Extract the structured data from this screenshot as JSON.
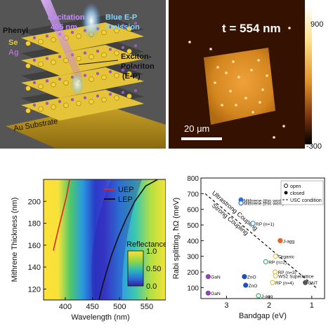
{
  "panel_a": {
    "labels": {
      "excitation": "Excitation",
      "wavelength": "405 nm",
      "phenyl": "Phenyl",
      "se": "Se",
      "ag": "Ag",
      "emission_line1": "Blue E-P",
      "emission_line2": "Emission",
      "ep_line1": "Exciton-",
      "ep_line2": "Polariton",
      "ep_line3": "(E-P)",
      "substrate": "Au Substrate"
    }
  },
  "panel_b": {
    "thickness_label": "t = 554 nm",
    "scalebar_label": "20 μm",
    "colorbar_max": "900",
    "colorbar_min": "-300"
  },
  "chart_data": [
    {
      "type": "heatmap",
      "xlabel": "Wavelength (nm)",
      "ylabel": "Mithrene Thickness (nm)",
      "xlim": [
        360,
        585
      ],
      "ylim": [
        110,
        220
      ],
      "xticks": [
        400,
        450,
        500,
        550
      ],
      "yticks": [
        120,
        140,
        160,
        180,
        200
      ],
      "colorbar": {
        "title": "Reflectance",
        "ticks": [
          "1.0",
          "0.50",
          "0.0"
        ],
        "range": [
          0.0,
          1.0
        ]
      },
      "series": [
        {
          "name": "UEP",
          "color": "#e8231e",
          "points": [
            [
              378,
              155
            ],
            [
              386,
              172
            ],
            [
              394,
              188
            ],
            [
              402,
              204
            ],
            [
              408,
              220
            ]
          ]
        },
        {
          "name": "LEP",
          "color": "#111111",
          "points": [
            [
              462,
              110
            ],
            [
              468,
              122
            ],
            [
              476,
              136
            ],
            [
              486,
              152
            ],
            [
              498,
              168
            ],
            [
              512,
              184
            ],
            [
              528,
              200
            ],
            [
              548,
              214
            ],
            [
              570,
              220
            ]
          ]
        }
      ]
    },
    {
      "type": "scatter",
      "xlabel": "Bandgap (eV)",
      "ylabel": "Rabi splitting, ħΩ (meV)",
      "xlim": [
        3.6,
        0.7
      ],
      "ylim": [
        30,
        800
      ],
      "x_reversed": true,
      "xticks": [
        3,
        2,
        1
      ],
      "yticks": [
        100,
        200,
        300,
        400,
        500,
        600,
        700,
        800
      ],
      "legend": {
        "position": "top-right",
        "entries": [
          "open",
          "closed",
          "USC condition"
        ]
      },
      "annotations": {
        "usc_line": "Ultrastrong Coupling",
        "sc_line": "Strong Coupling"
      },
      "points": [
        {
          "label": "Mithrene (this work)",
          "x": 2.66,
          "y": 660,
          "color": "#2f6fd6",
          "filled": true
        },
        {
          "label": "Mithrene (this work)",
          "x": 2.66,
          "y": 640,
          "color": "#2f6fd6",
          "filled": false
        },
        {
          "label": "RP (n=1)",
          "x": 2.38,
          "y": 510,
          "color": "#4a9fd6",
          "filled": false
        },
        {
          "label": "J-agg",
          "x": 1.74,
          "y": 400,
          "color": "#e8641e",
          "filled": true
        },
        {
          "label": "Organic",
          "x": 1.85,
          "y": 300,
          "color": "#e0c050",
          "filled": false
        },
        {
          "label": "RP (n=2)",
          "x": 2.08,
          "y": 265,
          "color": "#3cb371",
          "filled": false
        },
        {
          "label": "RP (n=3)",
          "x": 1.86,
          "y": 200,
          "color": "#e0c050",
          "filled": false
        },
        {
          "label": "WS2 Superlattice",
          "x": 1.85,
          "y": 175,
          "color": "#e0c050",
          "filled": false
        },
        {
          "label": "RP (n=4)",
          "x": 1.92,
          "y": 132,
          "color": "#e0c050",
          "filled": false
        },
        {
          "label": "CNT",
          "x": 1.15,
          "y": 132,
          "color": "#555555",
          "filled": true
        },
        {
          "label": "GaN",
          "x": 3.43,
          "y": 170,
          "color": "#8e44ad",
          "filled": true
        },
        {
          "label": "GaN",
          "x": 3.43,
          "y": 65,
          "color": "#8e44ad",
          "filled": true
        },
        {
          "label": "ZnO",
          "x": 2.58,
          "y": 170,
          "color": "#1f4fbf",
          "filled": true
        },
        {
          "label": "ZnO",
          "x": 2.55,
          "y": 115,
          "color": "#1f4fbf",
          "filled": true
        },
        {
          "label": "J-agg",
          "x": 2.25,
          "y": 48,
          "color": "#3cb371",
          "filled": false
        }
      ],
      "usc_line": [
        [
          3.5,
          700
        ],
        [
          0.9,
          100
        ]
      ]
    }
  ]
}
